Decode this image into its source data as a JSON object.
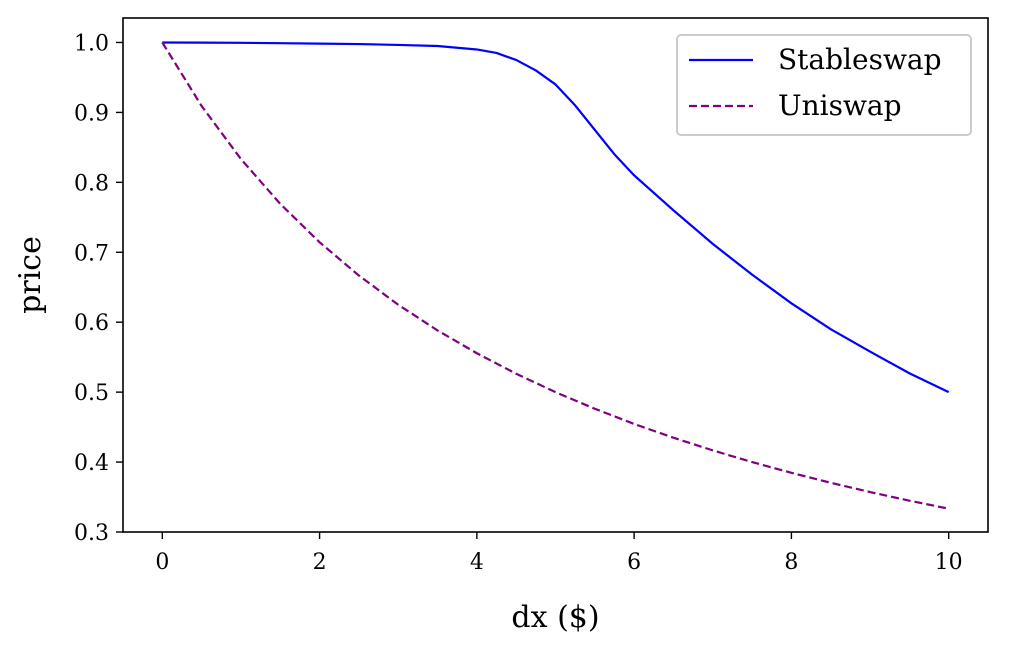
{
  "chart_data": {
    "type": "line",
    "title": "",
    "xlabel": "dx ($)",
    "ylabel": "price",
    "xlim": [
      -0.5,
      10.5
    ],
    "ylim": [
      0.3,
      1.035
    ],
    "xticks": [
      0,
      2,
      4,
      6,
      8,
      10
    ],
    "xtick_labels": [
      "0",
      "2",
      "4",
      "6",
      "8",
      "10"
    ],
    "yticks": [
      0.3,
      0.4,
      0.5,
      0.6,
      0.7,
      0.8,
      0.9,
      1.0
    ],
    "ytick_labels": [
      "0.3",
      "0.4",
      "0.5",
      "0.6",
      "0.7",
      "0.8",
      "0.9",
      "1.0"
    ],
    "grid": false,
    "legend": {
      "position": "upper right",
      "entries": [
        "Stableswap",
        "Uniswap"
      ]
    },
    "series": [
      {
        "name": "Stableswap",
        "color": "#0000ff",
        "linestyle": "solid",
        "x": [
          0,
          0.5,
          1,
          1.5,
          2,
          2.5,
          3,
          3.5,
          4,
          4.25,
          4.5,
          4.75,
          5,
          5.25,
          5.5,
          5.75,
          6,
          6.5,
          7,
          7.5,
          8,
          8.5,
          9,
          9.5,
          10
        ],
        "y": [
          1.0,
          0.9998,
          0.9995,
          0.999,
          0.9984,
          0.9977,
          0.9965,
          0.995,
          0.99,
          0.985,
          0.975,
          0.96,
          0.94,
          0.91,
          0.875,
          0.84,
          0.81,
          0.76,
          0.712,
          0.668,
          0.627,
          0.59,
          0.558,
          0.527,
          0.5
        ]
      },
      {
        "name": "Uniswap",
        "color": "#800080",
        "linestyle": "dashed",
        "x": [
          0,
          0.5,
          1,
          1.5,
          2,
          2.5,
          3,
          3.5,
          4,
          4.5,
          5,
          5.5,
          6,
          6.5,
          7,
          7.5,
          8,
          8.5,
          9,
          9.5,
          10
        ],
        "y": [
          1.0,
          0.9091,
          0.8333,
          0.7692,
          0.7143,
          0.6667,
          0.625,
          0.5882,
          0.5556,
          0.5263,
          0.5,
          0.4762,
          0.4545,
          0.4348,
          0.4167,
          0.4,
          0.3846,
          0.3704,
          0.3571,
          0.3448,
          0.3333
        ]
      }
    ]
  }
}
